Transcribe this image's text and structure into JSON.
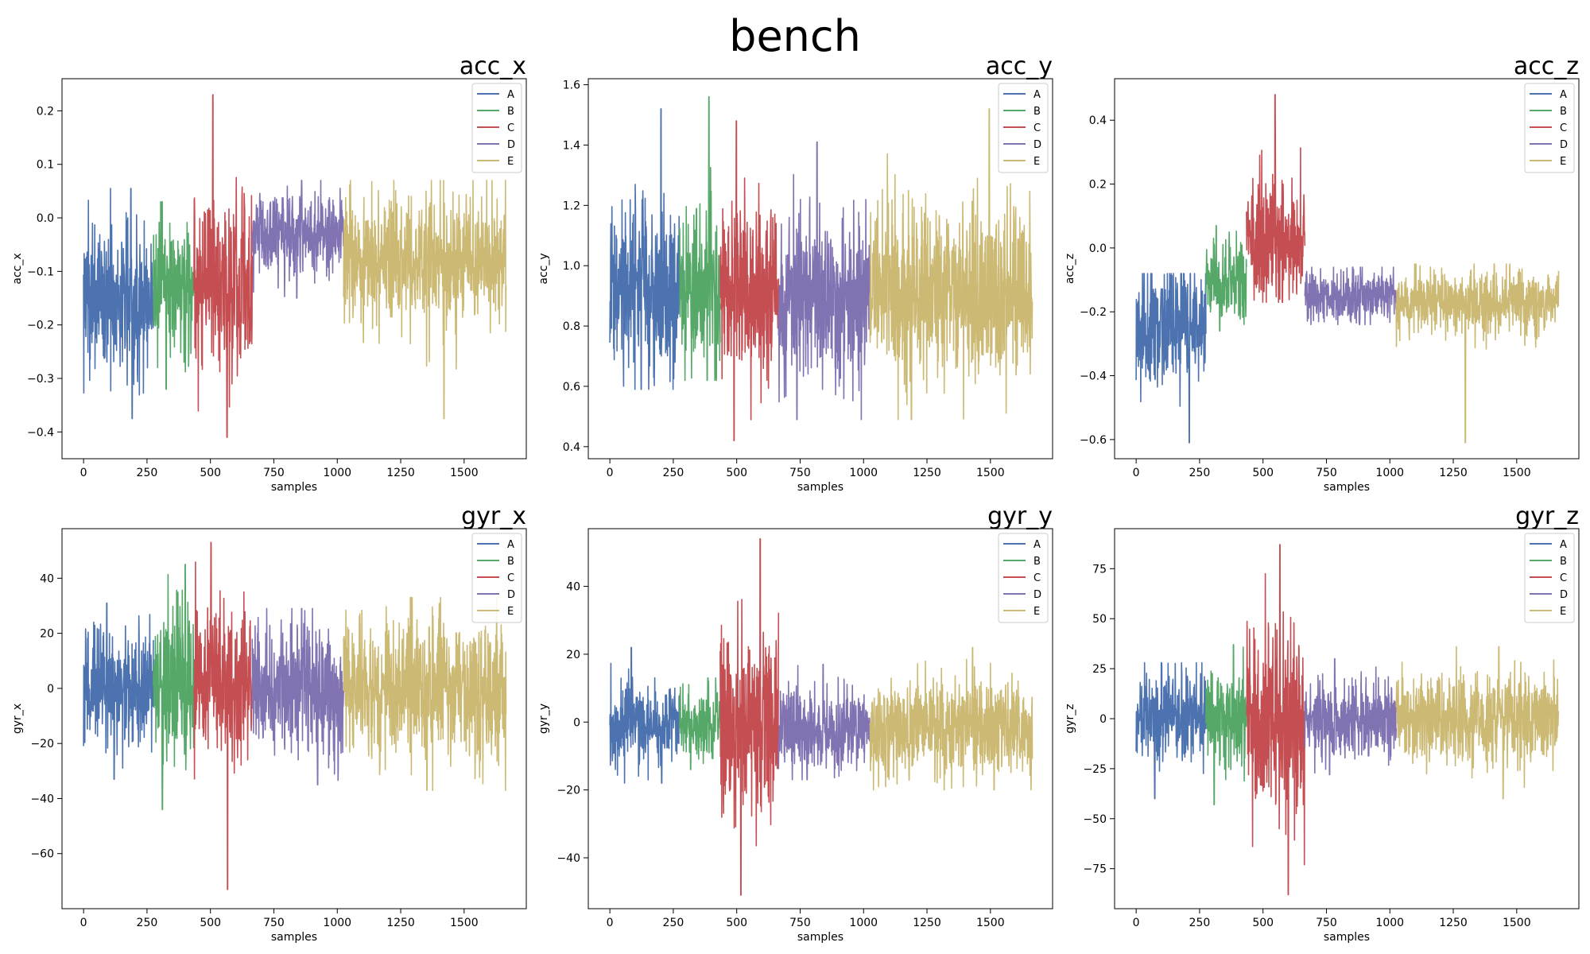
{
  "figure": {
    "title": "bench"
  },
  "colors": {
    "A": "#4c72b0",
    "B": "#55a868",
    "C": "#c44e52",
    "D": "#8172b2",
    "E": "#ccb974"
  },
  "chart_data": [
    {
      "type": "line",
      "title": "acc_x",
      "xlabel": "samples",
      "ylabel": "acc_x",
      "xlim": [
        -85,
        1745
      ],
      "ylim": [
        -0.45,
        0.26
      ],
      "xticks": [
        0,
        250,
        500,
        750,
        1000,
        1250,
        1500
      ],
      "yticks": [
        -0.4,
        -0.3,
        -0.2,
        -0.1,
        0.0,
        0.1,
        0.2
      ],
      "ytick_labels": [
        "−0.4",
        "−0.3",
        "−0.2",
        "−0.1",
        "0.0",
        "0.1",
        "0.2"
      ],
      "legend": "top-right",
      "grid": false,
      "series": [
        {
          "name": "A",
          "x_range": [
            0,
            275
          ],
          "center": -0.15,
          "spread": 0.07,
          "min": -0.375,
          "max": 0.055
        },
        {
          "name": "B",
          "x_range": [
            275,
            435
          ],
          "center": -0.13,
          "spread": 0.06,
          "min": -0.32,
          "max": 0.03
        },
        {
          "name": "C",
          "x_range": [
            435,
            665
          ],
          "center": -0.12,
          "spread": 0.09,
          "min": -0.41,
          "max": 0.23
        },
        {
          "name": "D",
          "x_range": [
            665,
            1025
          ],
          "center": -0.03,
          "spread": 0.035,
          "min": -0.15,
          "max": 0.07
        },
        {
          "name": "E",
          "x_range": [
            1025,
            1665
          ],
          "center": -0.08,
          "spread": 0.06,
          "min": -0.375,
          "max": 0.07
        }
      ]
    },
    {
      "type": "line",
      "title": "acc_y",
      "xlabel": "samples",
      "ylabel": "acc_y",
      "xlim": [
        -85,
        1745
      ],
      "ylim": [
        0.36,
        1.62
      ],
      "xticks": [
        0,
        250,
        500,
        750,
        1000,
        1250,
        1500
      ],
      "yticks": [
        0.4,
        0.6,
        0.8,
        1.0,
        1.2,
        1.4,
        1.6
      ],
      "ytick_labels": [
        "0.4",
        "0.6",
        "0.8",
        "1.0",
        "1.2",
        "1.4",
        "1.6"
      ],
      "legend": "top-right",
      "grid": false,
      "series": [
        {
          "name": "A",
          "x_range": [
            0,
            275
          ],
          "center": 0.9,
          "spread": 0.14,
          "min": 0.59,
          "max": 1.52
        },
        {
          "name": "B",
          "x_range": [
            275,
            435
          ],
          "center": 0.92,
          "spread": 0.14,
          "min": 0.62,
          "max": 1.56
        },
        {
          "name": "C",
          "x_range": [
            435,
            665
          ],
          "center": 0.93,
          "spread": 0.15,
          "min": 0.42,
          "max": 1.48
        },
        {
          "name": "D",
          "x_range": [
            665,
            1025
          ],
          "center": 0.9,
          "spread": 0.14,
          "min": 0.49,
          "max": 1.41
        },
        {
          "name": "E",
          "x_range": [
            1025,
            1665
          ],
          "center": 0.92,
          "spread": 0.15,
          "min": 0.49,
          "max": 1.52
        }
      ]
    },
    {
      "type": "line",
      "title": "acc_z",
      "xlabel": "samples",
      "ylabel": "acc_z",
      "xlim": [
        -85,
        1745
      ],
      "ylim": [
        -0.66,
        0.53
      ],
      "xticks": [
        0,
        250,
        500,
        750,
        1000,
        1250,
        1500
      ],
      "yticks": [
        -0.6,
        -0.4,
        -0.2,
        0.0,
        0.2,
        0.4
      ],
      "ytick_labels": [
        "−0.6",
        "−0.4",
        "−0.2",
        "0.0",
        "0.2",
        "0.4"
      ],
      "legend": "top-right",
      "grid": false,
      "series": [
        {
          "name": "A",
          "x_range": [
            0,
            275
          ],
          "center": -0.25,
          "spread": 0.1,
          "min": -0.61,
          "max": -0.08
        },
        {
          "name": "B",
          "x_range": [
            275,
            435
          ],
          "center": -0.1,
          "spread": 0.06,
          "min": -0.26,
          "max": 0.07
        },
        {
          "name": "C",
          "x_range": [
            435,
            665
          ],
          "center": 0.02,
          "spread": 0.1,
          "min": -0.17,
          "max": 0.48
        },
        {
          "name": "D",
          "x_range": [
            665,
            1025
          ],
          "center": -0.15,
          "spread": 0.04,
          "min": -0.24,
          "max": -0.06
        },
        {
          "name": "E",
          "x_range": [
            1025,
            1665
          ],
          "center": -0.17,
          "spread": 0.05,
          "min": -0.61,
          "max": -0.05
        }
      ]
    },
    {
      "type": "line",
      "title": "gyr_x",
      "xlabel": "samples",
      "ylabel": "gyr_x",
      "xlim": [
        -85,
        1745
      ],
      "ylim": [
        -80,
        58
      ],
      "xticks": [
        0,
        250,
        500,
        750,
        1000,
        1250,
        1500
      ],
      "yticks": [
        -60,
        -40,
        -20,
        0,
        20,
        40
      ],
      "ytick_labels": [
        "−60",
        "−40",
        "−20",
        "0",
        "20",
        "40"
      ],
      "legend": "top-right",
      "grid": false,
      "series": [
        {
          "name": "A",
          "x_range": [
            0,
            275
          ],
          "center": 0,
          "spread": 11,
          "min": -33,
          "max": 31
        },
        {
          "name": "B",
          "x_range": [
            275,
            435
          ],
          "center": 0,
          "spread": 14,
          "min": -44,
          "max": 45
        },
        {
          "name": "C",
          "x_range": [
            435,
            665
          ],
          "center": 2,
          "spread": 13,
          "min": -73,
          "max": 53
        },
        {
          "name": "D",
          "x_range": [
            665,
            1025
          ],
          "center": 0,
          "spread": 12,
          "min": -35,
          "max": 29
        },
        {
          "name": "E",
          "x_range": [
            1025,
            1665
          ],
          "center": 0,
          "spread": 13,
          "min": -37,
          "max": 33
        }
      ]
    },
    {
      "type": "line",
      "title": "gyr_y",
      "xlabel": "samples",
      "ylabel": "gyr_y",
      "xlim": [
        -85,
        1745
      ],
      "ylim": [
        -55,
        57
      ],
      "xticks": [
        0,
        250,
        500,
        750,
        1000,
        1250,
        1500
      ],
      "yticks": [
        -40,
        -20,
        0,
        20,
        40
      ],
      "ytick_labels": [
        "−40",
        "−20",
        "0",
        "20",
        "40"
      ],
      "legend": "top-right",
      "grid": false,
      "series": [
        {
          "name": "A",
          "x_range": [
            0,
            275
          ],
          "center": -1,
          "spread": 6,
          "min": -18,
          "max": 22
        },
        {
          "name": "B",
          "x_range": [
            275,
            435
          ],
          "center": -1,
          "spread": 5,
          "min": -14,
          "max": 13
        },
        {
          "name": "C",
          "x_range": [
            435,
            665
          ],
          "center": 0,
          "spread": 14,
          "min": -51,
          "max": 54
        },
        {
          "name": "D",
          "x_range": [
            665,
            1025
          ],
          "center": -2,
          "spread": 6,
          "min": -17,
          "max": 17
        },
        {
          "name": "E",
          "x_range": [
            1025,
            1665
          ],
          "center": -2,
          "spread": 7,
          "min": -20,
          "max": 22
        }
      ]
    },
    {
      "type": "line",
      "title": "gyr_z",
      "xlabel": "samples",
      "ylabel": "gyr_z",
      "xlim": [
        -85,
        1745
      ],
      "ylim": [
        -95,
        95
      ],
      "xticks": [
        0,
        250,
        500,
        750,
        1000,
        1250,
        1500
      ],
      "yticks": [
        -75,
        -50,
        -25,
        0,
        25,
        50,
        75
      ],
      "ytick_labels": [
        "−75",
        "−50",
        "−25",
        "0",
        "25",
        "50",
        "75"
      ],
      "legend": "top-right",
      "grid": false,
      "series": [
        {
          "name": "A",
          "x_range": [
            0,
            275
          ],
          "center": 0,
          "spread": 11,
          "min": -40,
          "max": 28
        },
        {
          "name": "B",
          "x_range": [
            275,
            435
          ],
          "center": 0,
          "spread": 12,
          "min": -43,
          "max": 37
        },
        {
          "name": "C",
          "x_range": [
            435,
            665
          ],
          "center": 0,
          "spread": 25,
          "min": -88,
          "max": 87
        },
        {
          "name": "D",
          "x_range": [
            665,
            1025
          ],
          "center": 0,
          "spread": 10,
          "min": -28,
          "max": 30
        },
        {
          "name": "E",
          "x_range": [
            1025,
            1665
          ],
          "center": 0,
          "spread": 11,
          "min": -40,
          "max": 36
        }
      ]
    }
  ]
}
